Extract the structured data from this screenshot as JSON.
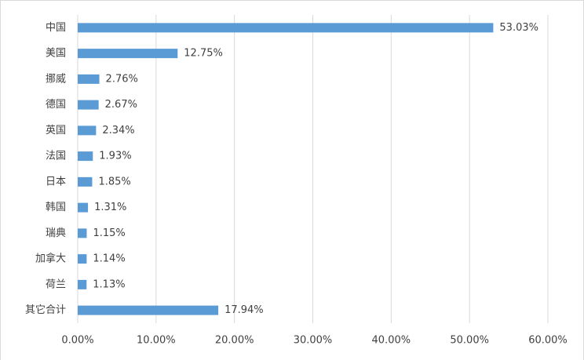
{
  "chart_data": {
    "type": "bar",
    "orientation": "horizontal",
    "categories": [
      "中国",
      "美国",
      "挪威",
      "德国",
      "英国",
      "法国",
      "日本",
      "韩国",
      "瑞典",
      "加拿大",
      "荷兰",
      "其它合计"
    ],
    "values": [
      53.03,
      12.75,
      2.76,
      2.67,
      2.34,
      1.93,
      1.85,
      1.31,
      1.15,
      1.14,
      1.13,
      17.94
    ],
    "value_labels": [
      "53.03%",
      "12.75%",
      "2.76%",
      "2.67%",
      "2.34%",
      "1.93%",
      "1.85%",
      "1.31%",
      "1.15%",
      "1.14%",
      "1.13%",
      "17.94%"
    ],
    "color": "#5b9bd5",
    "xlim": [
      0,
      60
    ],
    "xticks": [
      {
        "value": 0,
        "label": "0.00%"
      },
      {
        "value": 10,
        "label": "10.00%"
      },
      {
        "value": 20,
        "label": "20.00%"
      },
      {
        "value": 30,
        "label": "30.00%"
      },
      {
        "value": 40,
        "label": "40.00%"
      },
      {
        "value": 50,
        "label": "50.00%"
      },
      {
        "value": 60,
        "label": "60.00%"
      }
    ],
    "grid": true
  }
}
